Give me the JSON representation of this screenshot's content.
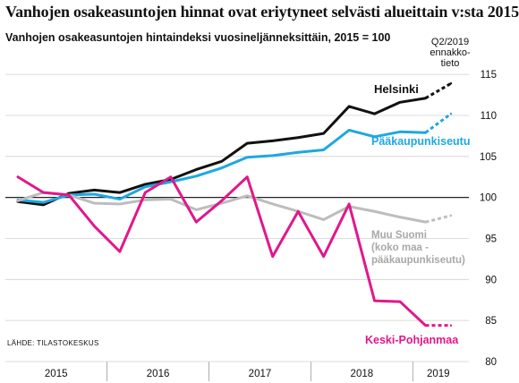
{
  "title": "Vanhojen osakeasuntojen hinnat ovat eriytyneet selvästi alueittain v:sta 2015",
  "subtitle": "Vanhojen osakeasuntojen hintaindeksi vuosineljänneksittäin, 2015 = 100",
  "forecast_note": [
    "Q2/2019",
    "ennakko-",
    "tieto"
  ],
  "source": "LÄHDE: TILASTOKESKUS",
  "colors": {
    "helsinki": "#111111",
    "paakaupunkiseutu": "#1ea8e0",
    "muu_suomi": "#bdbdbd",
    "keski_pohjanmaa": "#e0188c",
    "grid": "#cfcfcf",
    "baseline": "#222222"
  },
  "chart_data": {
    "type": "line",
    "x": [
      "Q1/2015",
      "Q2/2015",
      "Q3/2015",
      "Q4/2015",
      "Q1/2016",
      "Q2/2016",
      "Q3/2016",
      "Q4/2016",
      "Q1/2017",
      "Q2/2017",
      "Q3/2017",
      "Q4/2017",
      "Q1/2018",
      "Q2/2018",
      "Q3/2018",
      "Q4/2018",
      "Q1/2019",
      "Q2/2019"
    ],
    "x_year_labels": [
      "2015",
      "2016",
      "2017",
      "2018",
      "2019"
    ],
    "ylim": [
      80,
      117
    ],
    "y_ticks": [
      80,
      85,
      90,
      95,
      100,
      105,
      110,
      115
    ],
    "forecast_from_index": 16,
    "grid": true,
    "series": [
      {
        "key": "helsinki",
        "name": "Helsinki",
        "values": [
          99.5,
          99.1,
          100.5,
          100.9,
          100.6,
          101.6,
          102.2,
          103.4,
          104.4,
          106.6,
          106.9,
          107.3,
          107.8,
          111.1,
          110.2,
          111.6,
          112.1,
          113.9
        ]
      },
      {
        "key": "paakaupunkiseutu",
        "name": "Pääkaupunkiseutu",
        "values": [
          99.7,
          99.4,
          100.3,
          100.4,
          99.8,
          101.3,
          101.9,
          102.6,
          103.6,
          104.9,
          105.1,
          105.5,
          105.8,
          108.2,
          107.4,
          108.0,
          107.9,
          110.2
        ]
      },
      {
        "key": "muu_suomi",
        "name_lines": [
          "Muu Suomi",
          "(koko maa -",
          "pääkaupunkiseutu)"
        ],
        "values": [
          99.6,
          100.6,
          100.3,
          99.3,
          99.2,
          99.7,
          99.8,
          98.5,
          99.3,
          100.2,
          99.2,
          98.3,
          97.3,
          98.9,
          98.3,
          97.6,
          97.0,
          97.8
        ]
      },
      {
        "key": "keski_pohjanmaa",
        "name": "Keski-Pohjanmaa",
        "values": [
          102.5,
          100.6,
          100.3,
          96.5,
          93.4,
          100.6,
          102.5,
          97.0,
          99.6,
          102.5,
          92.8,
          98.3,
          92.8,
          99.2,
          87.4,
          87.3,
          84.4,
          84.4
        ]
      }
    ]
  }
}
